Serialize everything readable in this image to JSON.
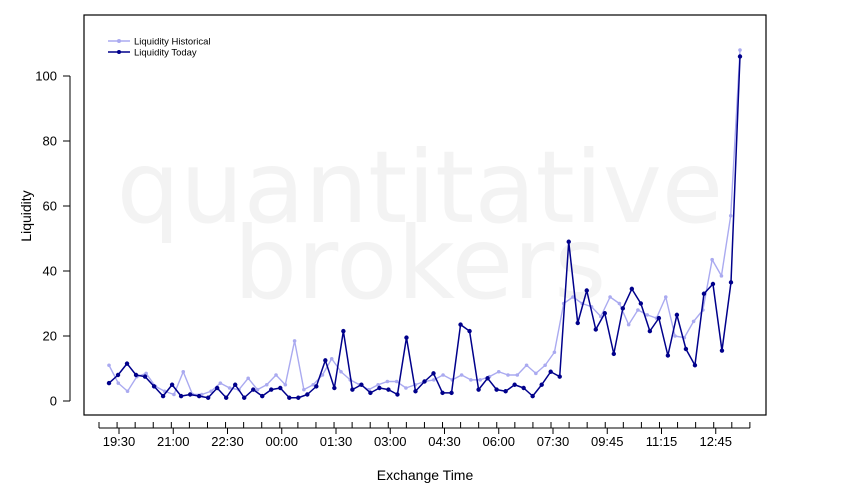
{
  "chart_data": {
    "type": "line",
    "xlabel": "Exchange Time",
    "ylabel": "Liquidity",
    "watermark": [
      "quantitative",
      "brokers"
    ],
    "x_tick_labels": [
      "19:30",
      "21:00",
      "22:30",
      "00:00",
      "01:30",
      "03:00",
      "04:30",
      "06:00",
      "07:30",
      "09:45",
      "11:15",
      "12:45"
    ],
    "y_ticks": [
      0,
      20,
      40,
      60,
      80,
      100
    ],
    "ylim": [
      -4,
      117
    ],
    "grid": false,
    "legend_position": "top-left",
    "series": [
      {
        "name": "Liquidity Historical",
        "color": "#aaaaf0",
        "values": [
          11,
          5.5,
          3,
          7.5,
          8.5,
          4.5,
          3,
          2,
          9,
          2,
          2,
          3,
          5.5,
          4,
          3.5,
          7,
          3.5,
          5,
          8,
          5,
          18.5,
          3.5,
          5,
          8,
          13,
          9,
          6.5,
          5,
          3.5,
          5,
          6,
          6,
          4,
          5,
          6,
          6.5,
          8,
          6.5,
          8,
          6.5,
          6.5,
          7.5,
          9,
          8,
          8,
          11,
          8.5,
          11,
          15,
          30,
          32,
          30,
          29,
          26,
          32,
          30,
          23.5,
          28,
          26.5,
          25.5,
          32,
          20,
          19.5,
          24.5,
          28,
          43.5,
          38.5,
          57,
          108
        ]
      },
      {
        "name": "Liquidity Today",
        "color": "#00008b",
        "values": [
          5.5,
          8,
          11.5,
          8,
          7.5,
          4.5,
          1.5,
          5,
          1.5,
          2,
          1.5,
          1,
          4,
          1,
          5,
          1,
          3.5,
          1.5,
          3.5,
          4,
          1,
          1,
          2,
          4.5,
          12.5,
          4,
          21.5,
          3.5,
          5,
          2.5,
          4,
          3.5,
          2,
          19.5,
          3,
          6,
          8.5,
          2.5,
          2.5,
          23.5,
          21.5,
          3.5,
          7,
          3.5,
          3,
          5,
          4,
          1.5,
          5,
          9,
          7.5,
          49,
          24,
          34,
          22,
          27,
          14.5,
          28.5,
          34.5,
          30,
          21.5,
          25.5,
          14,
          26.5,
          16,
          11,
          33,
          36,
          15.5,
          36.5,
          106
        ]
      }
    ]
  }
}
